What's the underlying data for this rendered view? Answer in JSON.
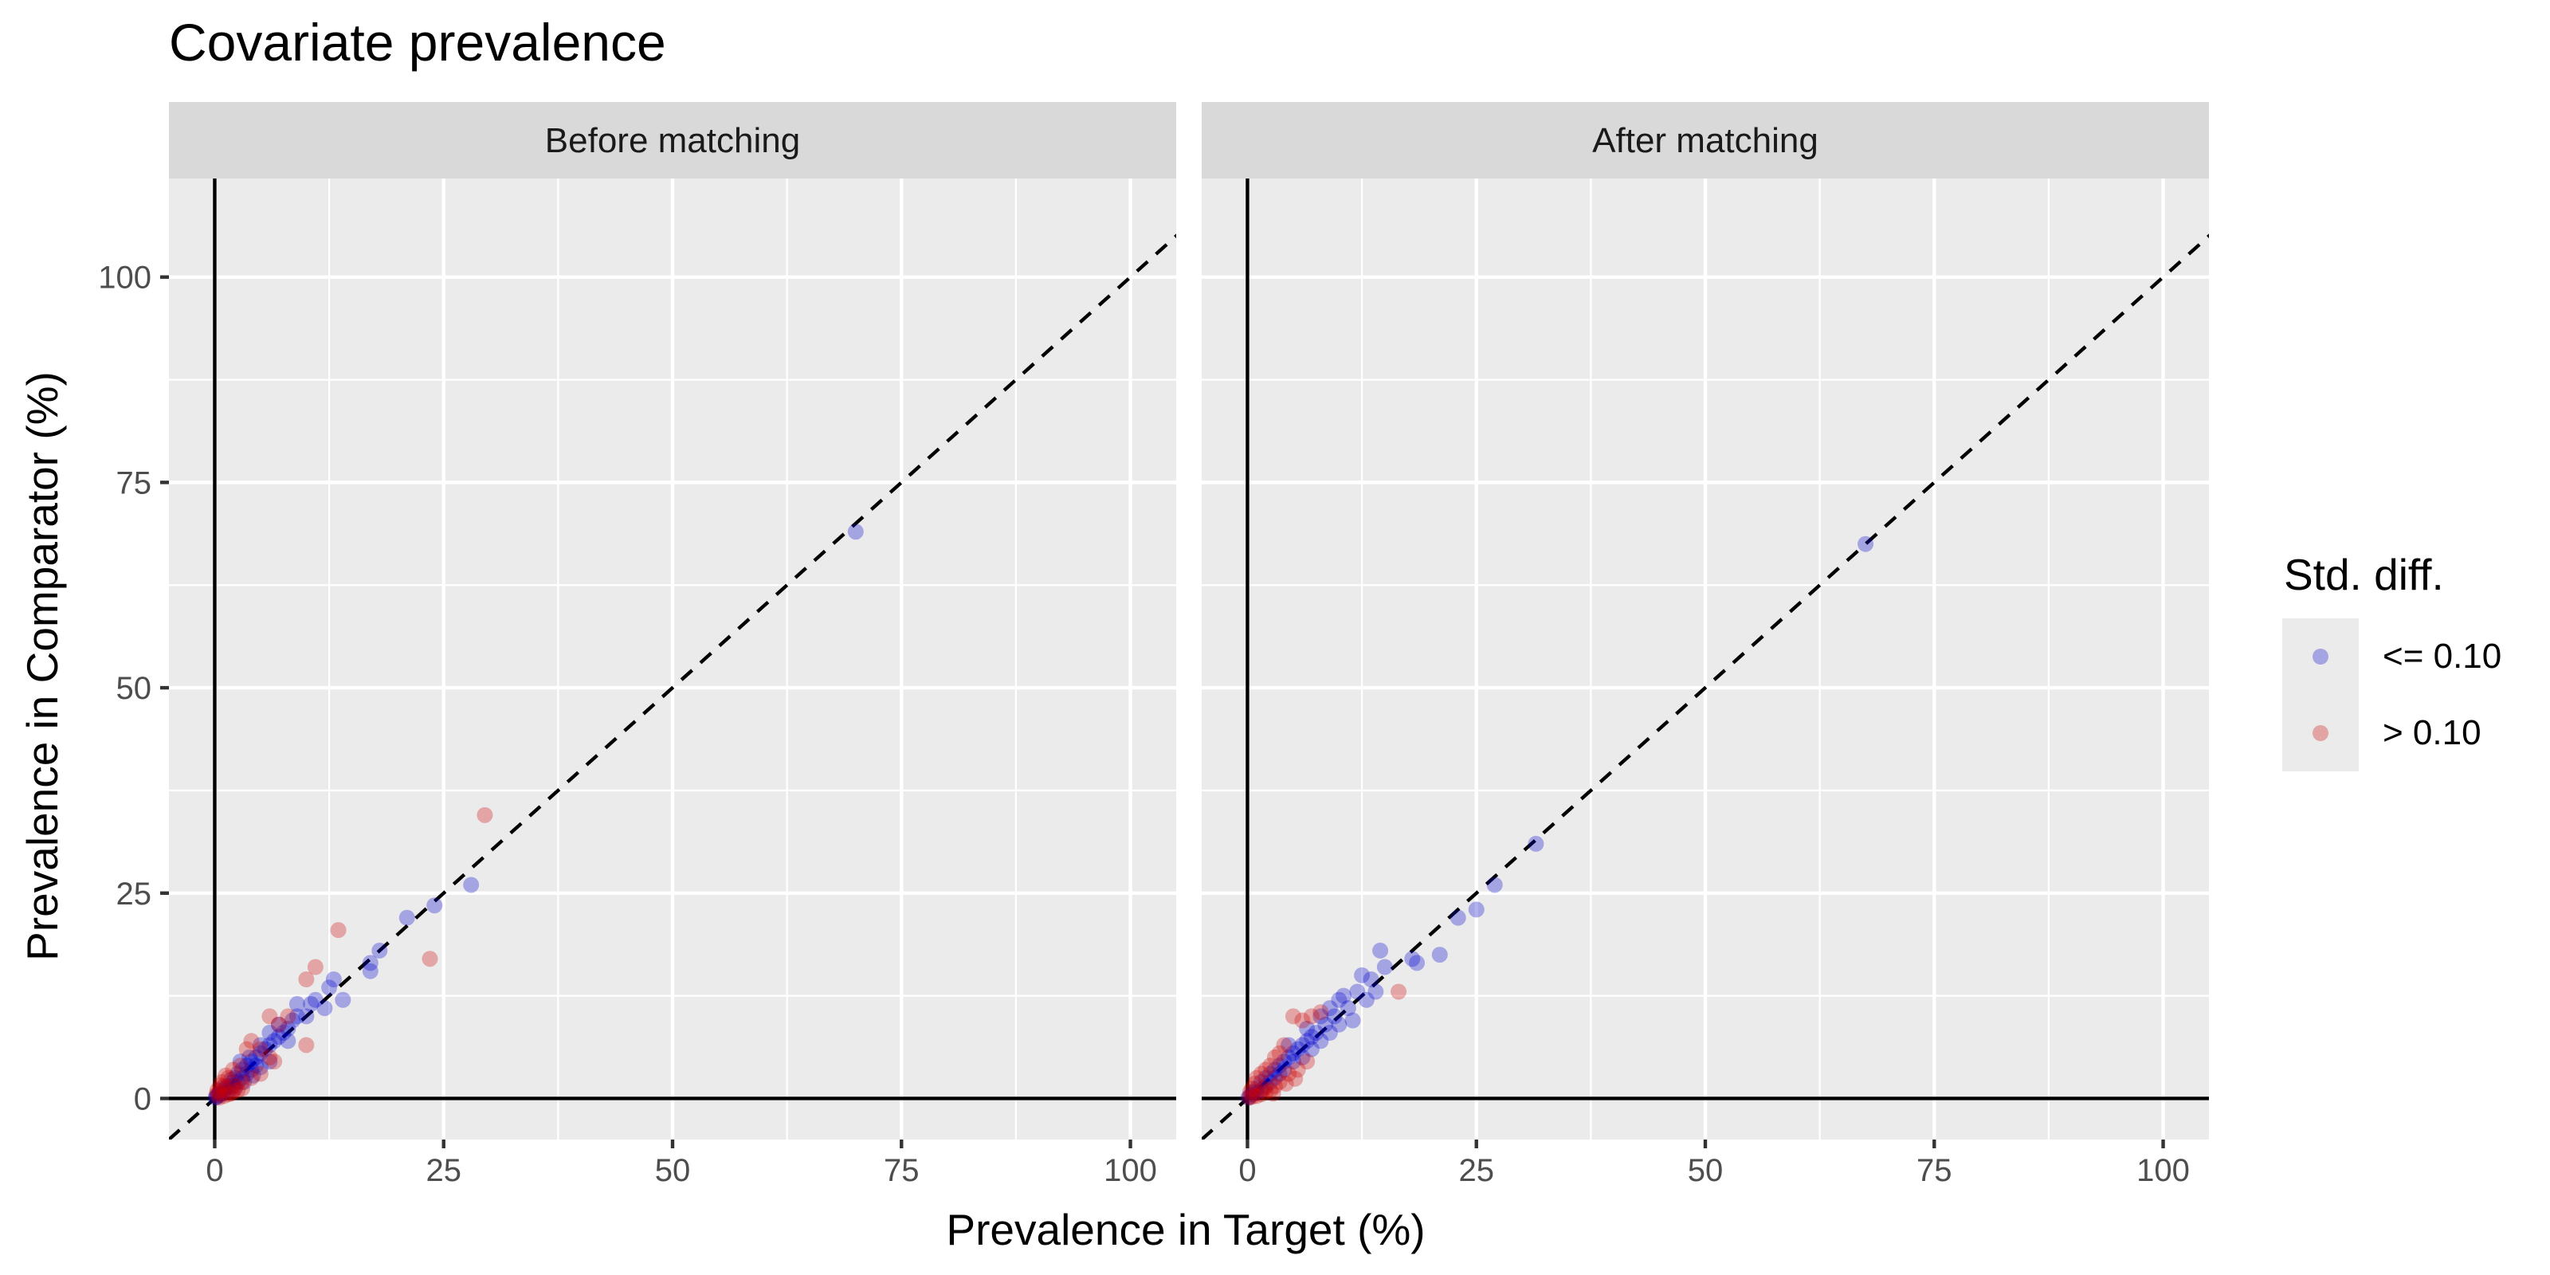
{
  "chart_data": {
    "type": "scatter",
    "title": "Covariate prevalence",
    "xlabel": "Prevalence in Target (%)",
    "ylabel": "Prevalence in Comparator (%)",
    "xlim": [
      -5,
      105
    ],
    "ylim": [
      -5,
      112
    ],
    "x_ticks": [
      "0",
      "25",
      "50",
      "75",
      "100"
    ],
    "y_ticks": [
      "0",
      "25",
      "50",
      "75",
      "100"
    ],
    "grid": true,
    "reference_line": "y = x (dashed)",
    "legend": {
      "title": "Std. diff.",
      "position": "right",
      "entries": [
        {
          "label": "<= 0.10",
          "color": "#0000cc"
        },
        {
          "label": "> 0.10",
          "color": "#cc0000"
        }
      ]
    },
    "panels": [
      {
        "name": "Before matching",
        "series": [
          {
            "name": "<= 0.10",
            "color": "#0000cc",
            "points": [
              [
                70,
                69
              ],
              [
                28,
                26
              ],
              [
                24,
                23.5
              ],
              [
                21,
                22
              ],
              [
                18,
                18
              ],
              [
                17,
                16.5
              ],
              [
                17,
                15.5
              ],
              [
                14,
                12
              ],
              [
                13,
                14.5
              ],
              [
                12.5,
                13.5
              ],
              [
                12,
                11
              ],
              [
                11,
                12
              ],
              [
                10.5,
                11.5
              ],
              [
                9,
                11.5
              ],
              [
                9,
                10
              ],
              [
                8.5,
                9.5
              ],
              [
                8,
                8.5
              ],
              [
                7.5,
                8
              ],
              [
                7,
                7.5
              ],
              [
                7,
                9
              ],
              [
                6.5,
                7
              ],
              [
                6,
                6.5
              ],
              [
                6,
                8
              ],
              [
                5.5,
                6
              ],
              [
                5,
                5.5
              ],
              [
                5,
                6.5
              ],
              [
                4.5,
                5
              ],
              [
                4.5,
                4
              ],
              [
                4,
                4.5
              ],
              [
                4,
                3.5
              ],
              [
                3.5,
                4
              ],
              [
                3.5,
                3
              ],
              [
                3,
                3.5
              ],
              [
                3,
                2.5
              ],
              [
                2.8,
                4.5
              ],
              [
                2.5,
                3
              ],
              [
                2.5,
                2
              ],
              [
                2.2,
                2.5
              ],
              [
                2,
                2
              ],
              [
                2,
                1.5
              ],
              [
                1.8,
                2.3
              ],
              [
                1.5,
                1.5
              ],
              [
                1.5,
                1
              ],
              [
                1.2,
                1.3
              ],
              [
                1,
                1
              ],
              [
                1,
                0.7
              ],
              [
                0.8,
                1.2
              ],
              [
                0.7,
                0.5
              ],
              [
                0.5,
                0.6
              ],
              [
                0.4,
                0.3
              ],
              [
                0.3,
                0.4
              ],
              [
                0.2,
                0.2
              ],
              [
                0.1,
                0.1
              ],
              [
                2.2,
                1.2
              ],
              [
                3.2,
                2
              ],
              [
                4.2,
                2.8
              ],
              [
                6,
                4.5
              ],
              [
                8,
                7
              ],
              [
                10,
                10
              ],
              [
                5,
                3.8
              ],
              [
                3.8,
                5
              ]
            ]
          },
          {
            "name": "> 0.10",
            "color": "#cc0000",
            "points": [
              [
                29.5,
                34.5
              ],
              [
                23.5,
                17
              ],
              [
                13.5,
                20.5
              ],
              [
                11,
                16
              ],
              [
                10,
                14.5
              ],
              [
                10,
                6.5
              ],
              [
                8,
                10
              ],
              [
                7,
                9
              ],
              [
                6.5,
                4.5
              ],
              [
                6,
                5
              ],
              [
                6,
                10
              ],
              [
                5,
                3
              ],
              [
                5,
                6
              ],
              [
                4,
                7
              ],
              [
                3.5,
                6
              ],
              [
                3,
                2
              ],
              [
                2.5,
                1
              ],
              [
                2,
                0.8
              ],
              [
                2,
                3.5
              ],
              [
                1.5,
                0.5
              ],
              [
                1.5,
                2.5
              ],
              [
                1,
                0.3
              ],
              [
                1,
                1.5
              ],
              [
                0.8,
                2
              ],
              [
                0.5,
                0.8
              ],
              [
                0.5,
                0.1
              ],
              [
                0.3,
                1
              ],
              [
                0.2,
                0.5
              ],
              [
                1.8,
                0.6
              ],
              [
                3,
                1.2
              ],
              [
                4,
                2.5
              ],
              [
                2.8,
                4
              ],
              [
                1.2,
                2.8
              ],
              [
                0.6,
                1.6
              ],
              [
                2.3,
                1.5
              ]
            ]
          }
        ]
      },
      {
        "name": "After matching",
        "series": [
          {
            "name": "<= 0.10",
            "color": "#0000cc",
            "points": [
              [
                67.5,
                67.5
              ],
              [
                31.5,
                31
              ],
              [
                27,
                26
              ],
              [
                25,
                23
              ],
              [
                23,
                22
              ],
              [
                21,
                17.5
              ],
              [
                18.5,
                16.5
              ],
              [
                18,
                17
              ],
              [
                15,
                16
              ],
              [
                14.5,
                18
              ],
              [
                14,
                13
              ],
              [
                13.5,
                14.5
              ],
              [
                13,
                12
              ],
              [
                12.5,
                15
              ],
              [
                12,
                13
              ],
              [
                11,
                11
              ],
              [
                10.5,
                12.5
              ],
              [
                10,
                12
              ],
              [
                10,
                9
              ],
              [
                9.5,
                10
              ],
              [
                9,
                11
              ],
              [
                9,
                8
              ],
              [
                8.5,
                9
              ],
              [
                8,
                10
              ],
              [
                8,
                7
              ],
              [
                7.5,
                8
              ],
              [
                7,
                7.5
              ],
              [
                7,
                6
              ],
              [
                6.5,
                7
              ],
              [
                6,
                6.5
              ],
              [
                6,
                5
              ],
              [
                5.5,
                6
              ],
              [
                5,
                5.5
              ],
              [
                5,
                4.5
              ],
              [
                4.5,
                5
              ],
              [
                4,
                4.5
              ],
              [
                4,
                3.5
              ],
              [
                3.5,
                4
              ],
              [
                3.5,
                3
              ],
              [
                3,
                3.5
              ],
              [
                3,
                2.5
              ],
              [
                2.5,
                3
              ],
              [
                2.5,
                2
              ],
              [
                2,
                2.5
              ],
              [
                2,
                1.5
              ],
              [
                1.5,
                2
              ],
              [
                1.5,
                1
              ],
              [
                1,
                1.2
              ],
              [
                1,
                0.7
              ],
              [
                0.7,
                0.8
              ],
              [
                0.5,
                0.5
              ],
              [
                0.3,
                0.3
              ],
              [
                0.1,
                0.1
              ],
              [
                4.5,
                6.5
              ],
              [
                6.5,
                8.5
              ],
              [
                11.5,
                9.5
              ]
            ]
          },
          {
            "name": "> 0.10",
            "color": "#cc0000",
            "points": [
              [
                16.5,
                13
              ],
              [
                8,
                10.5
              ],
              [
                7,
                10
              ],
              [
                6.5,
                4.5
              ],
              [
                6,
                9.5
              ],
              [
                5.5,
                3.5
              ],
              [
                5,
                10
              ],
              [
                4.5,
                3
              ],
              [
                4,
                6.5
              ],
              [
                3.5,
                2
              ],
              [
                3.5,
                5.5
              ],
              [
                3,
                1.5
              ],
              [
                3,
                5
              ],
              [
                2.5,
                1
              ],
              [
                2.5,
                4
              ],
              [
                2,
                0.8
              ],
              [
                2,
                3.5
              ],
              [
                1.5,
                0.5
              ],
              [
                1.5,
                3
              ],
              [
                1,
                0.3
              ],
              [
                1,
                2.5
              ],
              [
                0.8,
                1.8
              ],
              [
                0.5,
                1.2
              ],
              [
                0.5,
                0.2
              ],
              [
                0.3,
                0.8
              ],
              [
                0.2,
                0.1
              ],
              [
                4.2,
                1.8
              ],
              [
                2.8,
                0.6
              ],
              [
                5.2,
                2.4
              ],
              [
                1.8,
                1.2
              ]
            ]
          }
        ]
      }
    ]
  }
}
